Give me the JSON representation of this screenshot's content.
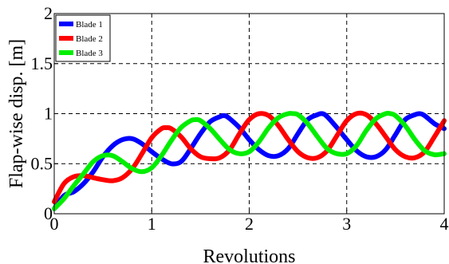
{
  "chart_data": {
    "type": "line",
    "title": "",
    "xlabel": "Revolutions",
    "ylabel": "Flap-wise disp. [m]",
    "xlim": [
      0,
      4
    ],
    "ylim": [
      0,
      2
    ],
    "xticks": [
      0,
      1,
      2,
      3,
      4
    ],
    "xtick_labels": [
      "0",
      "1",
      "2",
      "3",
      "4"
    ],
    "yticks": [
      0,
      0.5,
      1,
      1.5,
      2
    ],
    "ytick_labels": [
      "0",
      "0.5",
      "1",
      "1.5",
      "2"
    ],
    "grid": true,
    "grid_style": "dashed",
    "legend_position": "top-left",
    "series": [
      {
        "name": "Blade 1",
        "color": "#0000ff",
        "x": [
          0,
          0.1,
          0.2,
          0.3,
          0.4,
          0.5,
          0.6,
          0.7,
          0.8,
          0.9,
          1.0,
          1.1,
          1.2,
          1.3,
          1.4,
          1.5,
          1.6,
          1.7,
          1.75,
          1.8,
          1.9,
          2.0,
          2.1,
          2.2,
          2.3,
          2.4,
          2.5,
          2.6,
          2.7,
          2.75,
          2.8,
          2.9,
          3.0,
          3.1,
          3.2,
          3.3,
          3.4,
          3.5,
          3.6,
          3.7,
          3.75,
          3.8,
          3.9,
          4.0
        ],
        "y": [
          0.05,
          0.18,
          0.22,
          0.3,
          0.42,
          0.57,
          0.68,
          0.74,
          0.75,
          0.7,
          0.62,
          0.55,
          0.5,
          0.52,
          0.65,
          0.8,
          0.92,
          0.97,
          0.98,
          0.95,
          0.86,
          0.74,
          0.64,
          0.58,
          0.58,
          0.65,
          0.8,
          0.94,
          0.99,
          1.0,
          0.97,
          0.86,
          0.74,
          0.63,
          0.57,
          0.57,
          0.64,
          0.79,
          0.94,
          0.99,
          1.0,
          0.98,
          0.9,
          0.85
        ]
      },
      {
        "name": "Blade 2",
        "color": "#ff0000",
        "x": [
          0,
          0.1,
          0.2,
          0.3,
          0.4,
          0.5,
          0.6,
          0.7,
          0.8,
          0.9,
          1.0,
          1.1,
          1.15,
          1.2,
          1.3,
          1.4,
          1.5,
          1.6,
          1.7,
          1.8,
          1.9,
          2.0,
          2.1,
          2.2,
          2.3,
          2.4,
          2.5,
          2.6,
          2.7,
          2.8,
          2.9,
          3.0,
          3.1,
          3.2,
          3.3,
          3.4,
          3.5,
          3.6,
          3.7,
          3.8,
          3.9,
          4.0
        ],
        "y": [
          0.12,
          0.3,
          0.37,
          0.38,
          0.36,
          0.34,
          0.33,
          0.36,
          0.45,
          0.6,
          0.76,
          0.85,
          0.86,
          0.85,
          0.77,
          0.65,
          0.57,
          0.55,
          0.56,
          0.64,
          0.8,
          0.94,
          1.0,
          0.98,
          0.88,
          0.74,
          0.62,
          0.56,
          0.56,
          0.63,
          0.78,
          0.93,
          1.0,
          0.99,
          0.9,
          0.77,
          0.64,
          0.57,
          0.56,
          0.62,
          0.77,
          0.93
        ]
      },
      {
        "name": "Blade 3",
        "color": "#00ee00",
        "x": [
          0,
          0.1,
          0.2,
          0.3,
          0.4,
          0.5,
          0.6,
          0.7,
          0.8,
          0.9,
          1.0,
          1.1,
          1.2,
          1.3,
          1.4,
          1.45,
          1.5,
          1.6,
          1.7,
          1.8,
          1.9,
          2.0,
          2.1,
          2.2,
          2.3,
          2.4,
          2.45,
          2.5,
          2.6,
          2.7,
          2.8,
          2.9,
          3.0,
          3.1,
          3.2,
          3.3,
          3.4,
          3.45,
          3.5,
          3.6,
          3.7,
          3.8,
          3.9,
          4.0
        ],
        "y": [
          0.05,
          0.15,
          0.28,
          0.4,
          0.52,
          0.58,
          0.58,
          0.52,
          0.45,
          0.42,
          0.46,
          0.58,
          0.73,
          0.86,
          0.93,
          0.94,
          0.93,
          0.85,
          0.74,
          0.64,
          0.6,
          0.62,
          0.72,
          0.86,
          0.96,
          1.0,
          1.0,
          0.99,
          0.9,
          0.77,
          0.65,
          0.6,
          0.6,
          0.68,
          0.83,
          0.95,
          1.0,
          1.0,
          0.98,
          0.88,
          0.74,
          0.63,
          0.59,
          0.6
        ]
      }
    ]
  }
}
